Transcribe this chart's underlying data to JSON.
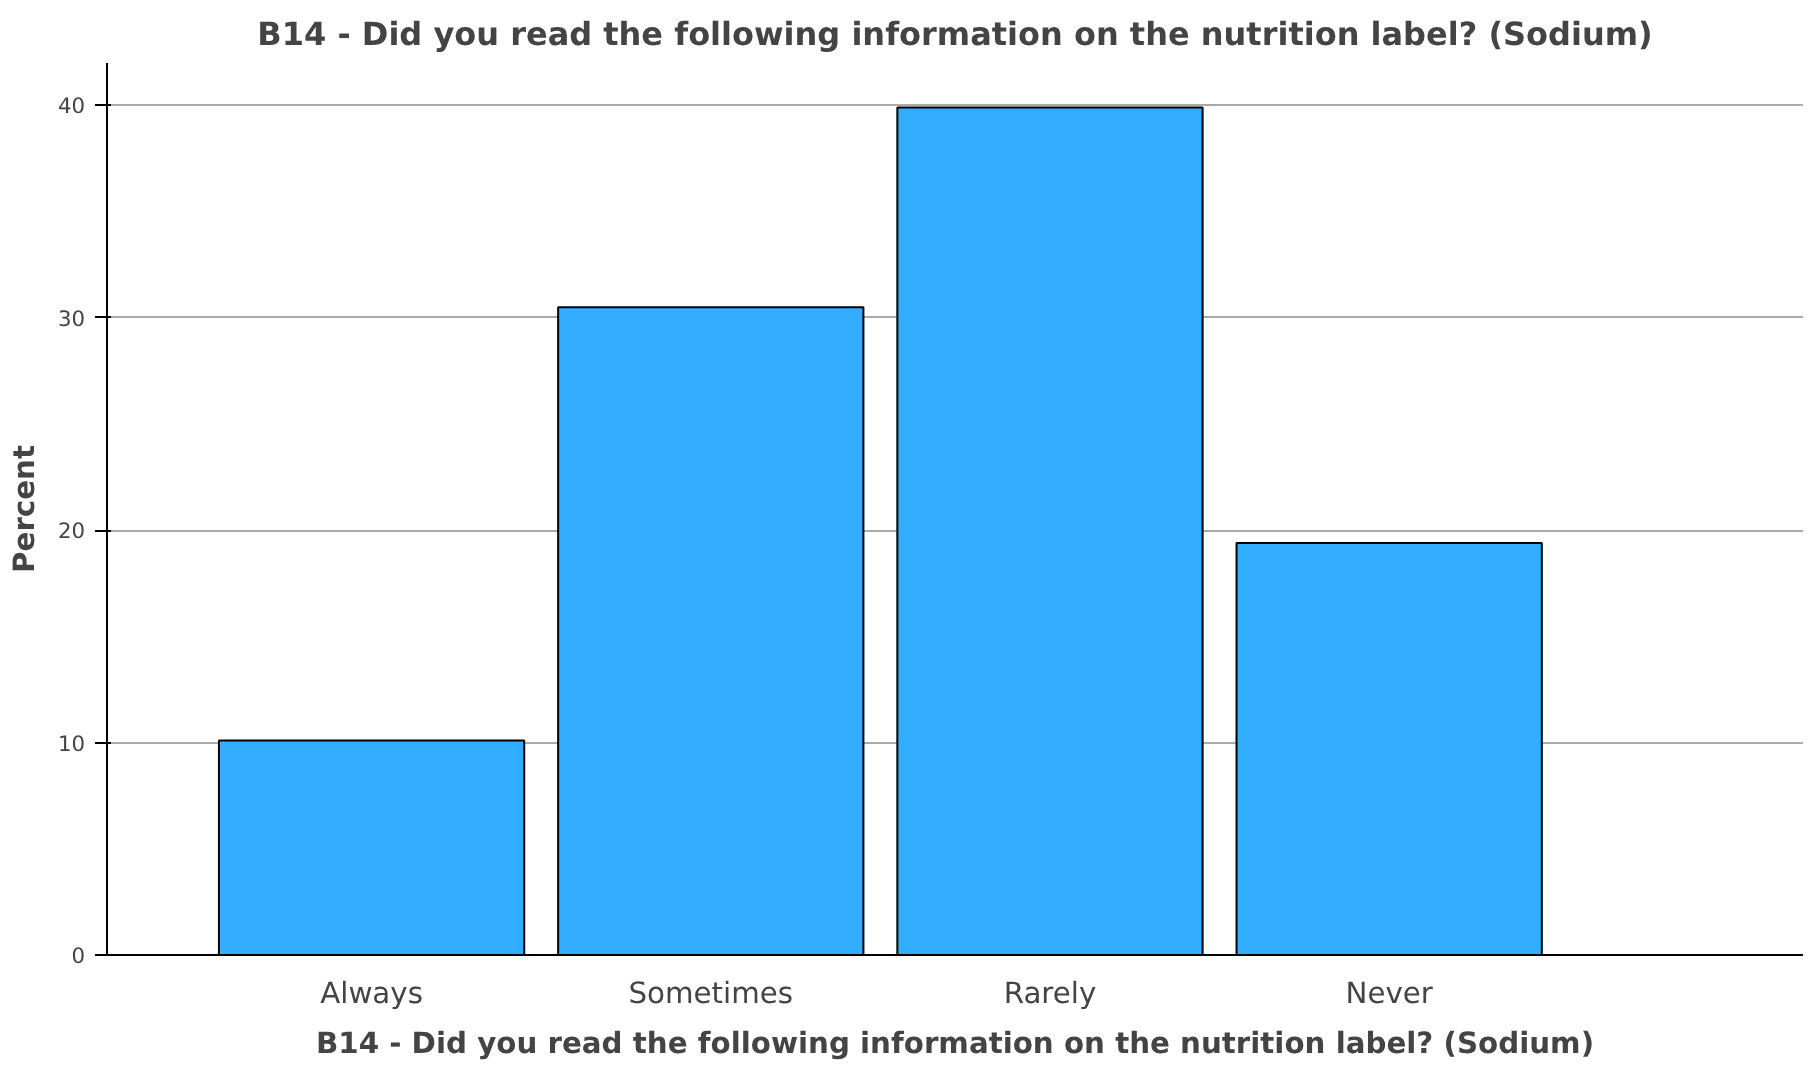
{
  "chart_data": {
    "type": "bar",
    "title": "B14 - Did you read the following information on the nutrition label? (Sodium)",
    "xlabel": "B14 - Did you read the following information on the nutrition label? (Sodium)",
    "ylabel": "Percent",
    "categories": [
      "Always",
      "Sometimes",
      "Rarely",
      "Never"
    ],
    "values": [
      10.1,
      30.5,
      39.9,
      19.4
    ],
    "color": "#33adff",
    "ylim": [
      0,
      42
    ],
    "yticks": [
      0,
      10,
      20,
      30,
      40
    ],
    "grid": "y"
  }
}
